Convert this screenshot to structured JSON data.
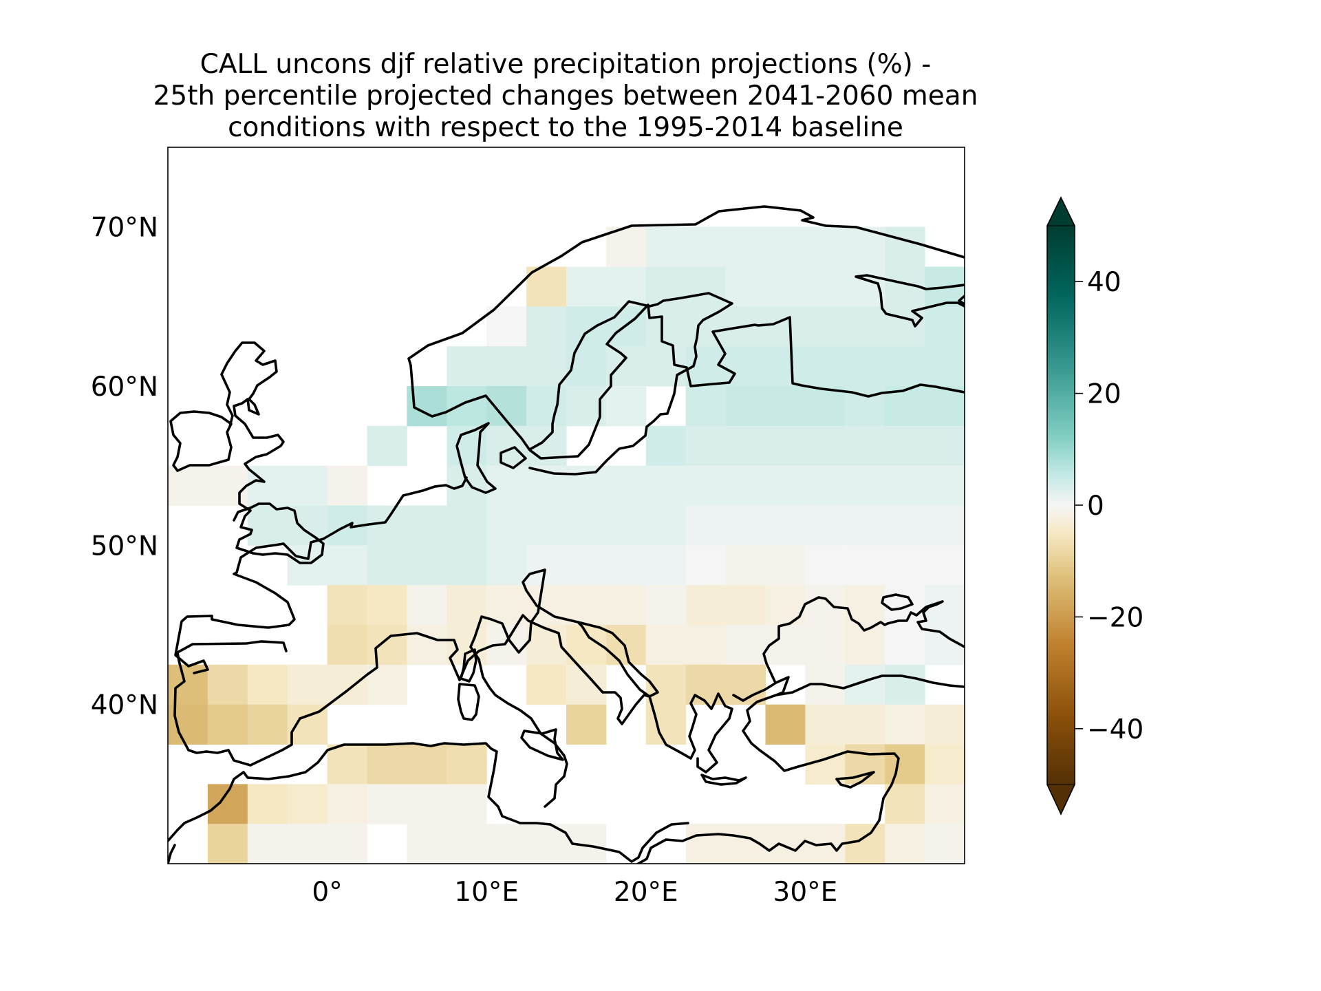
{
  "title": {
    "lines": [
      "CALL uncons djf relative precipitation projections (%) -",
      "25th percentile projected changes between 2041-2060 mean",
      "conditions with respect to the 1995-2014 baseline"
    ]
  },
  "map": {
    "projection": "PlateCarree",
    "extent_lon": [
      -10,
      40
    ],
    "extent_lat": [
      30,
      75
    ],
    "xticks": [
      {
        "lon": 0,
        "label": "0°"
      },
      {
        "lon": 10,
        "label": "10°E"
      },
      {
        "lon": 20,
        "label": "20°E"
      },
      {
        "lon": 30,
        "label": "30°E"
      }
    ],
    "yticks": [
      {
        "lat": 40,
        "label": "40°N"
      },
      {
        "lat": 50,
        "label": "50°N"
      },
      {
        "lat": 60,
        "label": "60°N"
      },
      {
        "lat": 70,
        "label": "70°N"
      }
    ],
    "coastline_color": "#000000",
    "land_only_data": true
  },
  "colorbar": {
    "colormap": "BrBG",
    "vmin": -50,
    "vmax": 50,
    "extend": "both",
    "ticks": [
      {
        "value": 40,
        "label": "40"
      },
      {
        "value": 20,
        "label": "20"
      },
      {
        "value": 0,
        "label": "0"
      },
      {
        "value": -20,
        "label": "−20"
      },
      {
        "value": -40,
        "label": "−40"
      }
    ],
    "color_stops": [
      {
        "value": -50,
        "color": "#543005"
      },
      {
        "value": -37.5,
        "color": "#8c510a"
      },
      {
        "value": -25,
        "color": "#bf812d"
      },
      {
        "value": -12.5,
        "color": "#dfc27d"
      },
      {
        "value": -5,
        "color": "#f6e8c3"
      },
      {
        "value": 0,
        "color": "#f5f5f5"
      },
      {
        "value": 5,
        "color": "#c7eae5"
      },
      {
        "value": 12.5,
        "color": "#80cdc1"
      },
      {
        "value": 25,
        "color": "#35978f"
      },
      {
        "value": 37.5,
        "color": "#01665e"
      },
      {
        "value": 50,
        "color": "#003c30"
      }
    ]
  },
  "chart_data": {
    "type": "heatmap",
    "variable": "relative precipitation change (%)",
    "cell_size_deg": 2.5,
    "lon_centers": [
      -8.75,
      -6.25,
      -3.75,
      -1.25,
      1.25,
      3.75,
      6.25,
      8.75,
      11.25,
      13.75,
      16.25,
      18.75,
      21.25,
      23.75,
      26.25,
      28.75,
      31.25,
      33.75,
      36.25,
      38.75
    ],
    "lat_centers": [
      73.75,
      71.25,
      68.75,
      66.25,
      63.75,
      61.25,
      58.75,
      56.25,
      53.75,
      51.25,
      48.75,
      46.25,
      43.75,
      41.25,
      38.75,
      36.25,
      33.75,
      31.25
    ],
    "values": [
      [
        null,
        null,
        null,
        null,
        null,
        null,
        null,
        null,
        null,
        null,
        null,
        null,
        null,
        null,
        null,
        null,
        null,
        null,
        null,
        null
      ],
      [
        null,
        null,
        null,
        null,
        null,
        null,
        null,
        null,
        null,
        null,
        null,
        null,
        null,
        null,
        null,
        null,
        null,
        null,
        null,
        null
      ],
      [
        null,
        null,
        null,
        null,
        null,
        null,
        null,
        null,
        null,
        null,
        null,
        -1,
        2,
        2,
        2,
        2,
        2,
        2,
        3,
        null
      ],
      [
        null,
        null,
        null,
        null,
        null,
        null,
        null,
        null,
        null,
        -6,
        2,
        2,
        3,
        3,
        2,
        2,
        2,
        2,
        3,
        5
      ],
      [
        null,
        null,
        null,
        null,
        null,
        null,
        null,
        null,
        0,
        3,
        4,
        4,
        3,
        3,
        3,
        3,
        3,
        3,
        3,
        4
      ],
      [
        null,
        null,
        null,
        null,
        null,
        null,
        null,
        3,
        3,
        3,
        4,
        3,
        3,
        4,
        4,
        4,
        4,
        4,
        4,
        4
      ],
      [
        null,
        null,
        null,
        null,
        null,
        null,
        8,
        6,
        7,
        4,
        3,
        2,
        null,
        4,
        5,
        5,
        5,
        4,
        5,
        5
      ],
      [
        null,
        null,
        null,
        null,
        null,
        3,
        null,
        4,
        3,
        3,
        null,
        null,
        4,
        3,
        3,
        3,
        3,
        3,
        3,
        3
      ],
      [
        -1,
        -1,
        2,
        2,
        -1,
        null,
        null,
        3,
        2,
        2,
        2,
        2,
        2,
        2,
        2,
        2,
        2,
        2,
        2,
        2
      ],
      [
        null,
        null,
        3,
        3,
        4,
        3,
        3,
        3,
        2,
        2,
        2,
        2,
        2,
        1,
        1,
        1,
        1,
        1,
        1,
        1
      ],
      [
        null,
        null,
        null,
        2,
        2,
        3,
        3,
        3,
        2,
        1,
        1,
        1,
        1,
        0,
        -1,
        -1,
        0,
        0,
        0,
        0
      ],
      [
        null,
        null,
        null,
        null,
        -6,
        -5,
        -1,
        -3,
        -2,
        -2,
        -2,
        -2,
        -1,
        -3,
        -3,
        -2,
        -1,
        -2,
        0,
        1
      ],
      [
        null,
        null,
        null,
        null,
        -7,
        -6,
        -2,
        -3,
        -1,
        -3,
        -5,
        -7,
        -2,
        -2,
        -1,
        -1,
        -1,
        -2,
        0,
        1
      ],
      [
        -13,
        -8,
        -5,
        -3,
        -3,
        -2,
        null,
        null,
        null,
        -5,
        -3,
        null,
        -6,
        -8,
        -8,
        null,
        -1,
        2,
        3,
        null
      ],
      [
        -14,
        -11,
        -9,
        -6,
        null,
        null,
        null,
        null,
        null,
        null,
        -9,
        null,
        -6,
        null,
        null,
        -14,
        -3,
        -3,
        -2,
        -3
      ],
      [
        null,
        null,
        null,
        null,
        -6,
        -8,
        -8,
        -7,
        null,
        null,
        null,
        null,
        null,
        null,
        null,
        null,
        -4,
        -8,
        -11,
        -4
      ],
      [
        null,
        -18,
        -5,
        -4,
        -2,
        -1,
        -1,
        -1,
        null,
        null,
        null,
        null,
        null,
        null,
        null,
        null,
        null,
        null,
        -6,
        -2
      ],
      [
        null,
        -9,
        -1,
        -1,
        -1,
        null,
        -1,
        -1,
        -1,
        -1,
        -1,
        null,
        null,
        -2,
        -2,
        -2,
        -2,
        -6,
        -2,
        -1
      ]
    ],
    "colorbar_range": [
      -50,
      50
    ],
    "units": "%"
  }
}
